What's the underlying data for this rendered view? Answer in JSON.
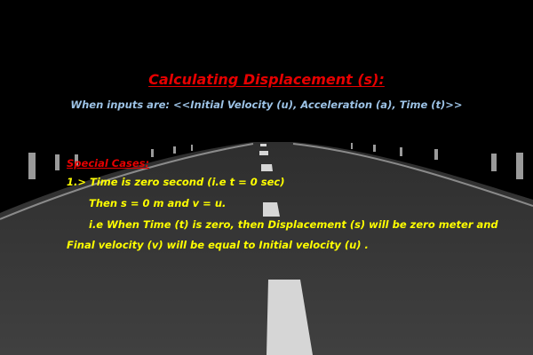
{
  "colors": {
    "background": "#000000",
    "road": "#3c3c3c",
    "road_shoulder": "#2a2a2a",
    "lane_marking": "#d6d6d6",
    "title": "#e60000",
    "subtitle": "#9dc3e6",
    "special_cases": "#e60000",
    "body_text": "#ffff00"
  },
  "heading": {
    "title": "Calculating Displacement (s):",
    "subtitle": "When inputs are: <<Initial Velocity (u), Acceleration (a), Time (t)>>"
  },
  "content": {
    "special_cases_label": "Special Cases:",
    "lines": [
      "1.> Time is zero second (i.e t = 0 sec)",
      "Then s = 0 m and v = u.",
      "i.e When Time (t) is  zero, then Displacement (s) will be zero meter and",
      "Final velocity (v) will be equal to Initial velocity (u) ."
    ]
  }
}
